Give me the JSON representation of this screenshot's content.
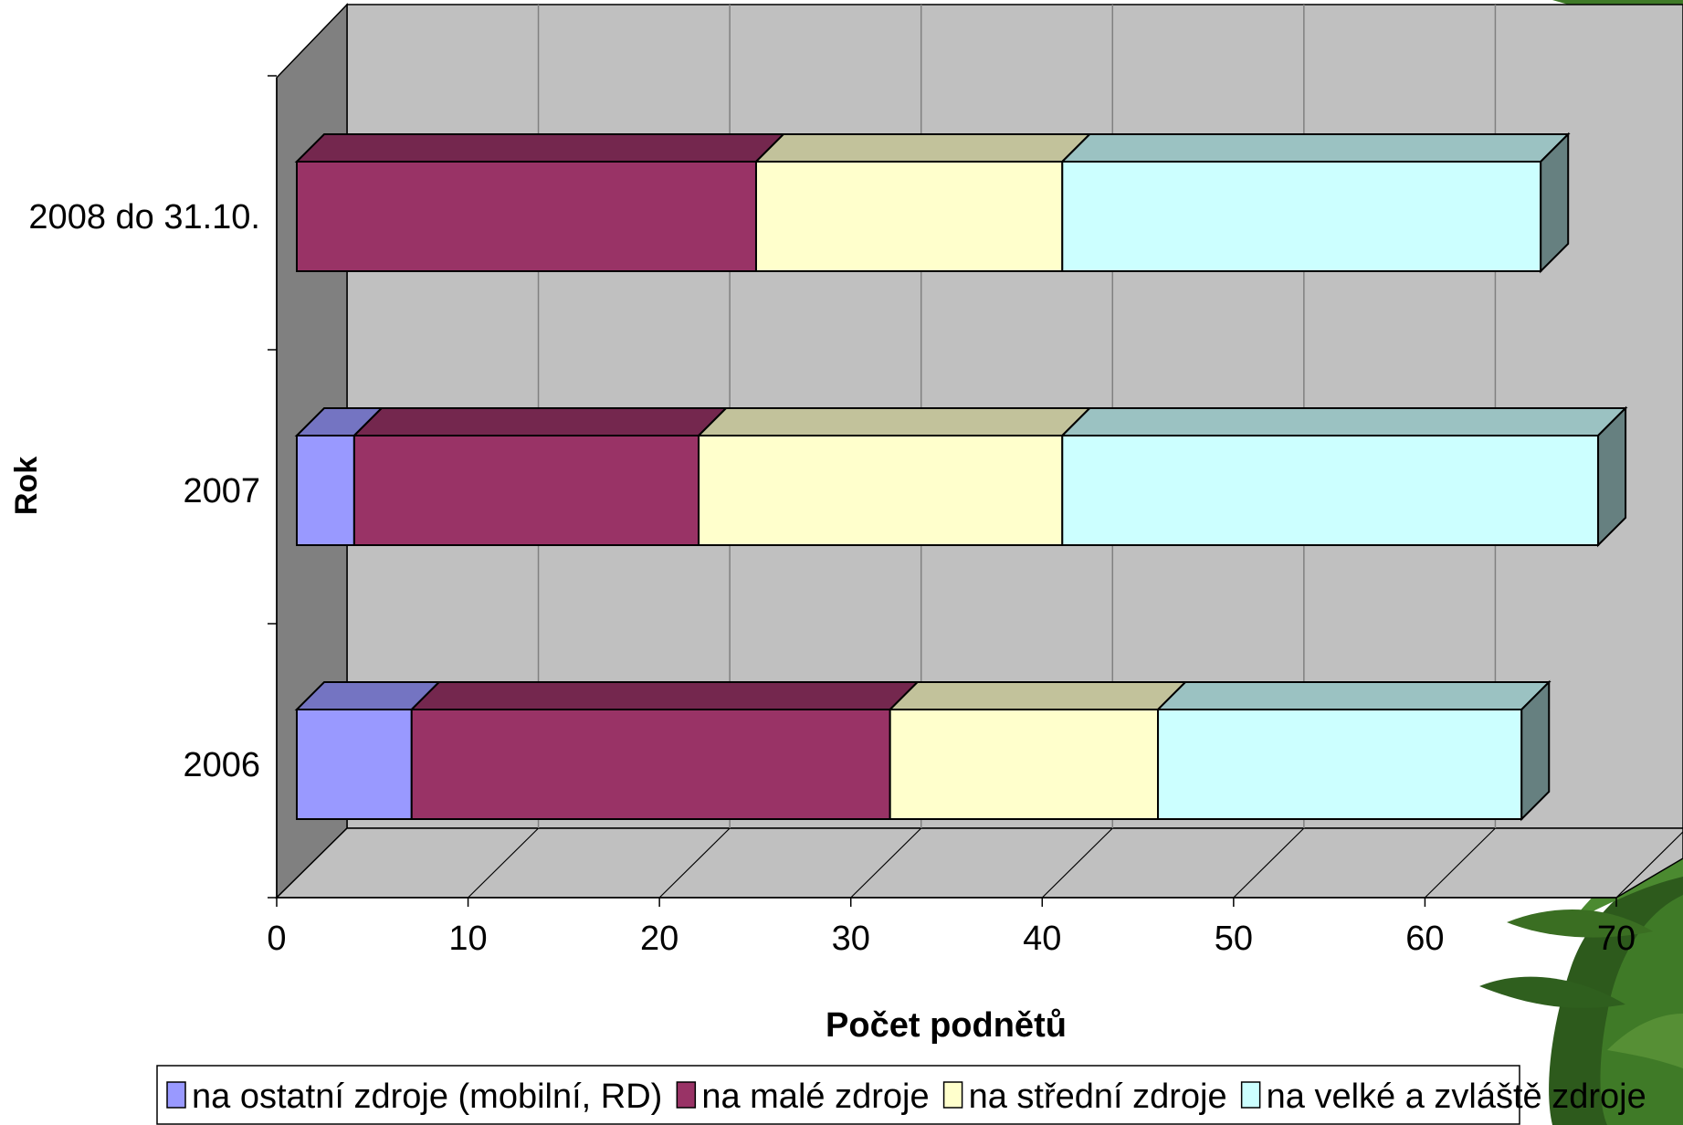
{
  "chart_data": {
    "type": "bar",
    "orientation": "horizontal",
    "stacked": true,
    "style": "3d",
    "title": "",
    "xlabel": "Počet podnětů",
    "ylabel": "Rok",
    "xlim": [
      0,
      70
    ],
    "xticks": [
      0,
      10,
      20,
      30,
      40,
      50,
      60,
      70
    ],
    "categories": [
      "2006",
      "2007",
      "2008 do 31.10."
    ],
    "series": [
      {
        "name": "na ostatní zdroje (mobilní, RD)",
        "values": [
          6,
          3,
          0
        ],
        "color": "#9999FF"
      },
      {
        "name": "na malé zdroje",
        "values": [
          25,
          18,
          24
        ],
        "color": "#993366"
      },
      {
        "name": "na střední zdroje",
        "values": [
          14,
          19,
          16
        ],
        "color": "#FFFFCC"
      },
      {
        "name": "na velké a zvláště zdroje",
        "values": [
          19,
          28,
          25
        ],
        "color": "#CCFFFF"
      }
    ],
    "grid": true,
    "legend_position": "bottom",
    "colors": {
      "back_wall": "#C0C0C0",
      "side_wall": "#808080",
      "floor": "#C0C0C0",
      "gridline": "#808080"
    }
  }
}
